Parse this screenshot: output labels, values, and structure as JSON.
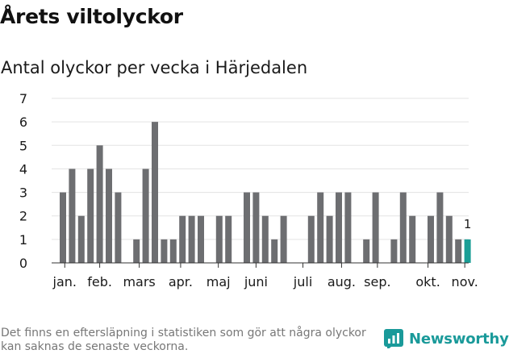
{
  "header": {
    "title": "Årets viltolyckor",
    "subtitle": "Antal olyckor per vecka i Härjedalen"
  },
  "footer": {
    "note": "Det finns en eftersläpning i statistiken som gör att några olyckor kan saknas de senaste veckorna.",
    "brand": "Newsworthy"
  },
  "colors": {
    "bar": "#6d6e71",
    "highlight": "#1a9e96",
    "grid": "#e3e3e3",
    "brand": "#1a9a9a"
  },
  "chart_data": {
    "type": "bar",
    "weeks": [
      1,
      2,
      3,
      4,
      5,
      6,
      7,
      8,
      9,
      10,
      11,
      12,
      13,
      14,
      15,
      16,
      17,
      18,
      19,
      20,
      21,
      22,
      23,
      24,
      25,
      26,
      27,
      28,
      29,
      30,
      31,
      32,
      33,
      34,
      35,
      36,
      37,
      38,
      39,
      40,
      41,
      42,
      43,
      44,
      45
    ],
    "values": [
      3,
      4,
      2,
      4,
      5,
      4,
      3,
      0,
      1,
      4,
      6,
      1,
      1,
      2,
      2,
      2,
      0,
      2,
      2,
      0,
      3,
      3,
      2,
      1,
      2,
      0,
      0,
      2,
      3,
      2,
      3,
      3,
      0,
      1,
      3,
      0,
      1,
      3,
      2,
      0,
      2,
      3,
      2,
      1,
      1
    ],
    "highlight_index": 44,
    "highlight_label": "1",
    "month_labels": [
      "jan.",
      "feb.",
      "mars",
      "apr.",
      "maj",
      "juni",
      "juli",
      "aug.",
      "sep.",
      "okt.",
      "nov."
    ],
    "month_label_weeks": [
      1.2,
      5.0,
      9.3,
      13.8,
      17.9,
      22.0,
      27.1,
      31.3,
      35.2,
      40.7,
      44.7
    ],
    "yticks": [
      "0",
      "1",
      "2",
      "3",
      "4",
      "5",
      "6",
      "7"
    ],
    "ylim": [
      0,
      7
    ],
    "grid": true
  }
}
